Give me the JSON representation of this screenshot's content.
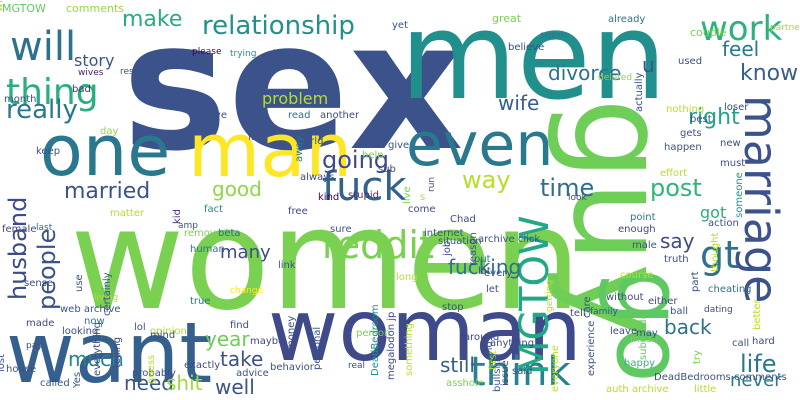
{
  "cloud": {
    "background": "#ffffff",
    "words": [
      {
        "text": "sex",
        "color": "#3b528b"
      },
      {
        "text": "men",
        "color": "#21908d"
      },
      {
        "text": "women",
        "color": "#7ad151"
      },
      {
        "text": "guy",
        "color": "#6ece58"
      },
      {
        "text": "woman",
        "color": "#3e4a89"
      },
      {
        "text": "want",
        "color": "#355f8d"
      },
      {
        "text": "one",
        "color": "#2a788e"
      },
      {
        "text": "man",
        "color": "#fde725"
      },
      {
        "text": "even",
        "color": "#2a788e"
      },
      {
        "text": "go",
        "color": "#5ec962"
      },
      {
        "text": "marriage",
        "color": "#3b528b"
      },
      {
        "text": "will",
        "color": "#2c728e"
      },
      {
        "text": "work",
        "color": "#2db27d"
      },
      {
        "text": "thing",
        "color": "#29af7f"
      },
      {
        "text": "fuck",
        "color": "#33638d"
      },
      {
        "text": "reddit",
        "color": "#7ad151"
      },
      {
        "text": "think",
        "color": "#26828e"
      },
      {
        "text": "MGTOW",
        "color": "#22a884"
      },
      {
        "text": "people",
        "color": "#3b528b"
      },
      {
        "text": "relationship",
        "color": "#21918c"
      },
      {
        "text": "really",
        "color": "#2a788e"
      },
      {
        "text": "make",
        "color": "#27ad81"
      },
      {
        "text": "going",
        "color": "#3e4a89"
      },
      {
        "text": "way",
        "color": "#b5de2b"
      },
      {
        "text": "time",
        "color": "#2e6e8e"
      },
      {
        "text": "post",
        "color": "#31b57b"
      },
      {
        "text": "gt",
        "color": "#2c728e"
      },
      {
        "text": "life",
        "color": "#2a788e"
      },
      {
        "text": "married",
        "color": "#3b528b"
      },
      {
        "text": "husband",
        "color": "#3e4a89"
      },
      {
        "text": "know",
        "color": "#355f8d"
      },
      {
        "text": "right",
        "color": "#21a585"
      },
      {
        "text": "feel",
        "color": "#2a788e"
      },
      {
        "text": "divorce",
        "color": "#2c728e"
      },
      {
        "text": "wife",
        "color": "#355f8d"
      },
      {
        "text": "good",
        "color": "#8fd744"
      },
      {
        "text": "fucking",
        "color": "#2c728e"
      },
      {
        "text": "much",
        "color": "#26828e"
      },
      {
        "text": "need",
        "color": "#3b528b"
      },
      {
        "text": "shit",
        "color": "#9fda3a"
      },
      {
        "text": "well",
        "color": "#3b528b"
      },
      {
        "text": "year",
        "color": "#6ece58"
      },
      {
        "text": "take",
        "color": "#3b528b"
      },
      {
        "text": "say",
        "color": "#3e4a89"
      },
      {
        "text": "back",
        "color": "#2c728e"
      },
      {
        "text": "still",
        "color": "#355f8d"
      },
      {
        "text": "never",
        "color": "#2a788e"
      },
      {
        "text": "problem",
        "color": "#b5de2b"
      },
      {
        "text": "story",
        "color": "#3b528b"
      },
      {
        "text": "got",
        "color": "#29af7f"
      },
      {
        "text": "u",
        "color": "#3b528b"
      },
      {
        "text": "many",
        "color": "#3e4a89"
      }
    ],
    "small_words": [
      {
        "text": "MGTOW",
        "color": "#5ec962"
      },
      {
        "text": "comments",
        "color": "#95d840"
      },
      {
        "text": "bad",
        "color": "#472d7b"
      },
      {
        "text": "month",
        "color": "#3b528b"
      },
      {
        "text": "female",
        "color": "#3e4a89"
      },
      {
        "text": "last",
        "color": "#31688e"
      },
      {
        "text": "wives",
        "color": "#481f70"
      },
      {
        "text": "resubmit",
        "color": "#3b528b"
      },
      {
        "text": "please",
        "color": "#440154"
      },
      {
        "text": "trying",
        "color": "#21918c"
      },
      {
        "text": "side",
        "color": "#3b528b"
      },
      {
        "text": "read",
        "color": "#2c728e"
      },
      {
        "text": "another",
        "color": "#3e4a89"
      },
      {
        "text": "world",
        "color": "#3b528b"
      },
      {
        "text": "away",
        "color": "#2a788e"
      },
      {
        "text": "always",
        "color": "#3e4a89"
      },
      {
        "text": "removed",
        "color": "#7ad151"
      },
      {
        "text": "human",
        "color": "#2a788e"
      },
      {
        "text": "change",
        "color": "#fde725"
      },
      {
        "text": "give",
        "color": "#3b528b"
      },
      {
        "text": "help",
        "color": "#7ad151"
      },
      {
        "text": "sub",
        "color": "#3e4a89"
      },
      {
        "text": "seem",
        "color": "#2c728e"
      },
      {
        "text": "great",
        "color": "#7ad151"
      },
      {
        "text": "yet",
        "color": "#3b528b"
      },
      {
        "text": "believe",
        "color": "#3e4a89"
      },
      {
        "text": "already",
        "color": "#2c728e"
      },
      {
        "text": "couple",
        "color": "#7ad151"
      },
      {
        "text": "partner",
        "color": "#9fda3a"
      },
      {
        "text": "used",
        "color": "#3e4a89"
      },
      {
        "text": "nothing",
        "color": "#b5de2b"
      },
      {
        "text": "gets",
        "color": "#3b528b"
      },
      {
        "text": "loser",
        "color": "#3e4a89"
      },
      {
        "text": "best",
        "color": "#3e4a89"
      },
      {
        "text": "effort",
        "color": "#b5de2b"
      },
      {
        "text": "point",
        "color": "#2a788e"
      },
      {
        "text": "new",
        "color": "#3e4a89"
      },
      {
        "text": "must",
        "color": "#3b528b"
      },
      {
        "text": "sense",
        "color": "#3e4a89"
      },
      {
        "text": "opinion",
        "color": "#b5de2b"
      },
      {
        "text": "true",
        "color": "#2a788e"
      },
      {
        "text": "made",
        "color": "#3e4a89"
      },
      {
        "text": "day",
        "color": "#8fd744"
      },
      {
        "text": "keep",
        "color": "#3b528b"
      },
      {
        "text": "love",
        "color": "#3b528b"
      },
      {
        "text": "fact",
        "color": "#21918c"
      },
      {
        "text": "fat",
        "color": "#3b528b"
      },
      {
        "text": "real",
        "color": "#3e4a89"
      },
      {
        "text": "stupid",
        "color": "#472d7b"
      },
      {
        "text": "person",
        "color": "#7ad151"
      },
      {
        "text": "said",
        "color": "#3b528b"
      },
      {
        "text": "around",
        "color": "#3e4a89"
      },
      {
        "text": "situation",
        "color": "#3b528b"
      },
      {
        "text": "job",
        "color": "#3e4a89"
      },
      {
        "text": "put",
        "color": "#2c728e"
      },
      {
        "text": "look",
        "color": "#3e4a89"
      },
      {
        "text": "actually",
        "color": "#3b528b"
      },
      {
        "text": "deleted",
        "color": "#8fd744"
      },
      {
        "text": "amp",
        "color": "#3b528b"
      },
      {
        "text": "kid",
        "color": "#472d7b"
      },
      {
        "text": "kind",
        "color": "#440154"
      },
      {
        "text": "live",
        "color": "#7ad151"
      },
      {
        "text": "come",
        "color": "#3e4a89"
      },
      {
        "text": "happen",
        "color": "#3b528b"
      },
      {
        "text": "tell",
        "color": "#3e4a89"
      },
      {
        "text": "getting",
        "color": "#b5de2b"
      },
      {
        "text": "run",
        "color": "#3e4a89"
      },
      {
        "text": "someone",
        "color": "#21918c"
      },
      {
        "text": "action",
        "color": "#3b528b"
      },
      {
        "text": "free",
        "color": "#3e4a89"
      },
      {
        "text": "sure",
        "color": "#3b528b"
      },
      {
        "text": "Chad",
        "color": "#3e4a89"
      },
      {
        "text": "archive click",
        "color": "#3b528b"
      },
      {
        "text": "enough",
        "color": "#3e4a89"
      },
      {
        "text": "male",
        "color": "#3b528b"
      },
      {
        "text": "truth",
        "color": "#3e4a89"
      },
      {
        "text": "part",
        "color": "#3b528b"
      },
      {
        "text": "dating",
        "color": "#3e4a89"
      },
      {
        "text": "family",
        "color": "#3b528b"
      },
      {
        "text": "without",
        "color": "#3e4a89"
      },
      {
        "text": "beta",
        "color": "#2c728e"
      },
      {
        "text": "link",
        "color": "#3b528b"
      },
      {
        "text": "internet",
        "color": "#3b528b"
      },
      {
        "text": "long",
        "color": "#b5de2b"
      },
      {
        "text": "lot",
        "color": "#3e4a89"
      },
      {
        "text": "stop",
        "color": "#3b528b"
      },
      {
        "text": "let",
        "color": "#3e4a89"
      },
      {
        "text": "see",
        "color": "#7ad151"
      },
      {
        "text": "reason",
        "color": "#3b528b"
      },
      {
        "text": "every",
        "color": "#3e4a89"
      },
      {
        "text": "thought",
        "color": "#b5de2b"
      },
      {
        "text": "cheating",
        "color": "#2c728e"
      },
      {
        "text": "course",
        "color": "#b5de2b"
      },
      {
        "text": "pay",
        "color": "#3e4a89"
      },
      {
        "text": "web archive",
        "color": "#3b528b"
      },
      {
        "text": "looking",
        "color": "#3e4a89"
      },
      {
        "text": "living",
        "color": "#b5de2b"
      },
      {
        "text": "certainly",
        "color": "#3b528b"
      },
      {
        "text": "money",
        "color": "#3e4a89"
      },
      {
        "text": "DeadBedroom",
        "color": "#21918c"
      },
      {
        "text": "megalodon jp",
        "color": "#3e4a89"
      },
      {
        "text": "personal",
        "color": "#3b528b"
      },
      {
        "text": "anything",
        "color": "#3e4a89"
      },
      {
        "text": "care",
        "color": "#3b528b"
      },
      {
        "text": "subreddit",
        "color": "#5ec962"
      },
      {
        "text": "either",
        "color": "#3e4a89"
      },
      {
        "text": "ball",
        "color": "#3b528b"
      },
      {
        "text": "leave",
        "color": "#3e4a89"
      },
      {
        "text": "mean",
        "color": "#7ad151"
      },
      {
        "text": "may",
        "color": "#3b528b"
      },
      {
        "text": "happy",
        "color": "#2db27d"
      },
      {
        "text": "try",
        "color": "#7ad151"
      },
      {
        "text": "call",
        "color": "#3b528b"
      },
      {
        "text": "hard",
        "color": "#3e4a89"
      },
      {
        "text": "better",
        "color": "#b5de2b"
      },
      {
        "text": "house",
        "color": "#3b528b"
      },
      {
        "text": "use",
        "color": "#3e4a89"
      },
      {
        "text": "lost",
        "color": "#3b528b"
      },
      {
        "text": "called",
        "color": "#3b528b"
      },
      {
        "text": "now",
        "color": "#2c728e"
      },
      {
        "text": "lol",
        "color": "#3b528b"
      },
      {
        "text": "mind",
        "color": "#3e4a89"
      },
      {
        "text": "find",
        "color": "#3b528b"
      },
      {
        "text": "maybe",
        "color": "#3e4a89"
      },
      {
        "text": "probably",
        "color": "#3b528b"
      },
      {
        "text": "guess",
        "color": "#b5de2b"
      },
      {
        "text": "advice",
        "color": "#3b528b"
      },
      {
        "text": "behavior",
        "color": "#3b528b"
      },
      {
        "text": "exactly",
        "color": "#3e4a89"
      },
      {
        "text": "everything",
        "color": "#3b528b"
      },
      {
        "text": "telling",
        "color": "#3e4a89"
      },
      {
        "text": "Yes",
        "color": "#3b528b"
      },
      {
        "text": "something",
        "color": "#b5de2b"
      },
      {
        "text": "asshole",
        "color": "#7ad151"
      },
      {
        "text": "issue",
        "color": "#3e4a89"
      },
      {
        "text": "end",
        "color": "#3b528b"
      },
      {
        "text": "first",
        "color": "#b5de2b"
      },
      {
        "text": "experience",
        "color": "#3b528b"
      },
      {
        "text": "everyone",
        "color": "#b5de2b"
      },
      {
        "text": "bullshit",
        "color": "#3b528b"
      },
      {
        "text": "auth archive",
        "color": "#b5de2b"
      },
      {
        "text": "DeadBedrooms comments",
        "color": "#3b528b"
      },
      {
        "text": "little",
        "color": "#b5de2b"
      },
      {
        "text": "matter",
        "color": "#b5de2b"
      },
      {
        "text": "s",
        "color": "#b5de2b"
      },
      {
        "text": "wrong",
        "color": "#b5de2b"
      }
    ]
  }
}
